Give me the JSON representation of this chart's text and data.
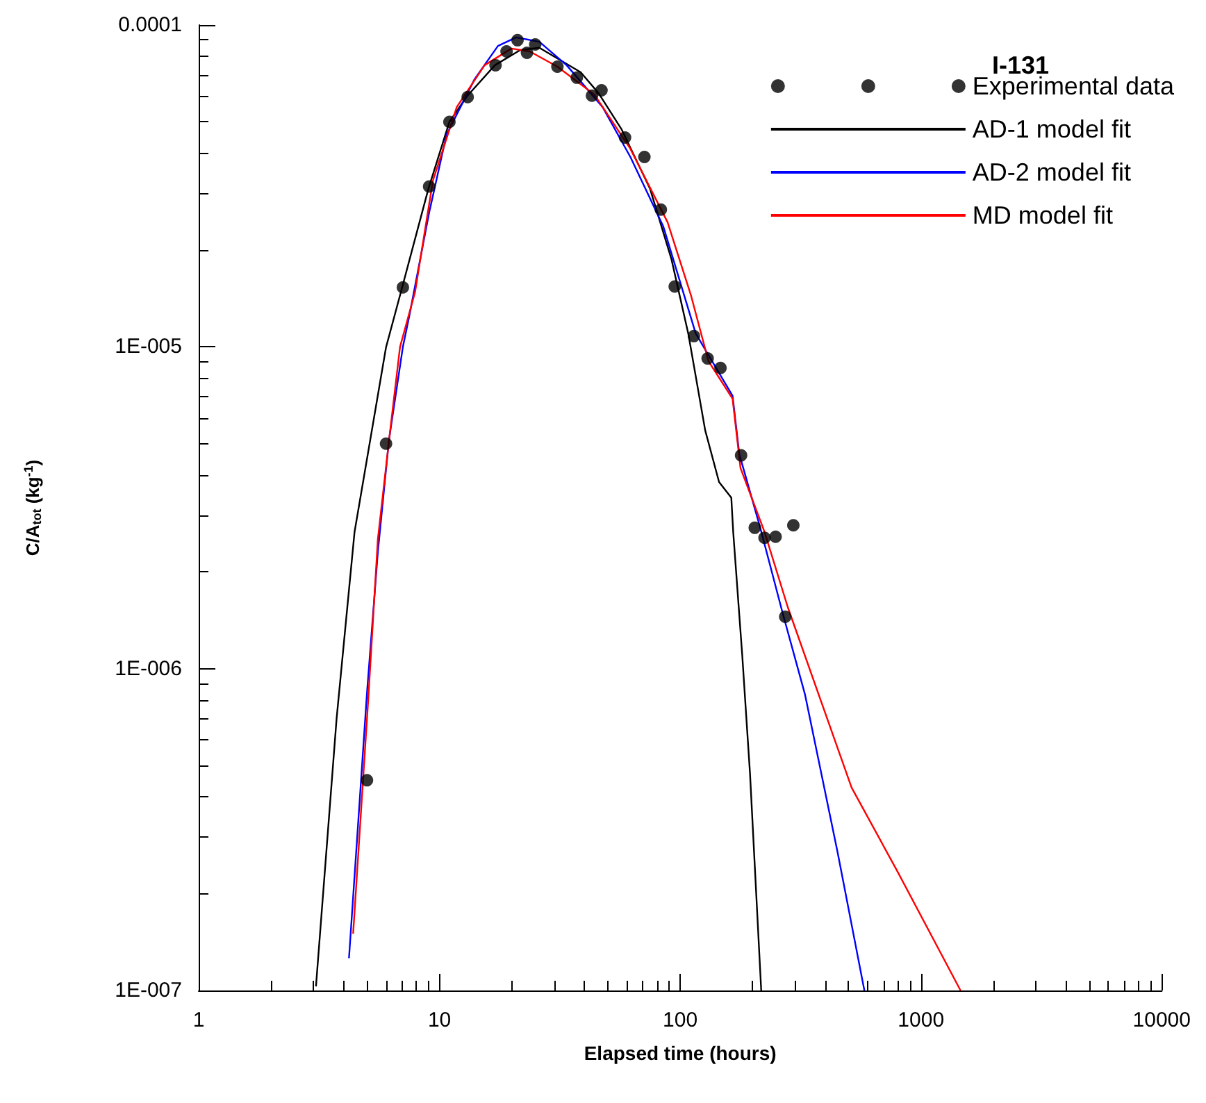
{
  "chart_data": {
    "type": "line",
    "xlabel": "Elapsed time (hours)",
    "ylabel": "C/A$_{tot}$ (kg$^{-1}$)",
    "legend_title": "I-131",
    "log": "xy",
    "grid": false,
    "legend": "top right",
    "xlim": [
      1,
      10000
    ],
    "xticks": [
      1,
      10,
      100,
      1000,
      10000
    ],
    "ylim": [
      1e-07,
      0.0001
    ],
    "yticks": [
      {
        "value": 1e-07,
        "label": "1E-007"
      },
      {
        "value": 1e-06,
        "label": "1E-006"
      },
      {
        "value": 1e-05,
        "label": "1E-005"
      },
      {
        "value": 0.0001,
        "label": "0.0001"
      }
    ],
    "series": [
      {
        "name": "Experimental data",
        "type": "scatter",
        "color": "#000000",
        "x": [
          5.0,
          6.0,
          7.05,
          9.06,
          11.0,
          13.1,
          17.1,
          19.0,
          21.1,
          23.1,
          25.0,
          30.9,
          37.2,
          43.0,
          47.1,
          59.0,
          71.0,
          83.1,
          94.9,
          114,
          130,
          147,
          179,
          204,
          224,
          249,
          273,
          295
        ],
        "values": [
          4.5e-07,
          5e-06,
          1.53e-05,
          3.15e-05,
          5e-05,
          5.97e-05,
          7.5e-05,
          8.28e-05,
          8.97e-05,
          8.2e-05,
          8.7e-05,
          7.42e-05,
          6.86e-05,
          6.03e-05,
          6.27e-05,
          4.47e-05,
          3.89e-05,
          2.67e-05,
          1.54e-05,
          1.08e-05,
          9.2e-06,
          8.6e-06,
          4.6e-06,
          2.74e-06,
          2.55e-06,
          2.57e-06,
          1.45e-06,
          2.79e-06
        ]
      },
      {
        "name": "AD-1 model fit",
        "color": "#000000",
        "x": [
          3.07,
          3.74,
          4.44,
          6.0,
          7.0,
          9.0,
          11.0,
          13.0,
          17.0,
          21.6,
          26.0,
          38.6,
          45.8,
          57,
          74.9,
          92,
          108,
          127,
          145,
          163,
          166,
          181,
          195,
          217
        ],
        "values": [
          1.03e-07,
          7e-07,
          2.66e-06,
          9.97e-06,
          1.53e-05,
          3.1e-05,
          5e-05,
          6e-05,
          7.5e-05,
          8.35e-05,
          8.5e-05,
          7.13e-05,
          6.14e-05,
          4.75e-05,
          3.1e-05,
          1.87e-05,
          1.1e-05,
          5.5e-06,
          3.8e-06,
          3.4e-06,
          2.66e-06,
          1.1e-06,
          4.7e-07,
          1e-07
        ]
      },
      {
        "name": "AD-2 model fit",
        "color": "#0000ff",
        "x": [
          4.21,
          5.0,
          5.55,
          6.17,
          7.05,
          7.5,
          9.06,
          10.7,
          14.0,
          17.5,
          20.8,
          26,
          33.8,
          47.6,
          62.1,
          85,
          116,
          165,
          176,
          215,
          265,
          330,
          450,
          582
        ],
        "values": [
          1.26e-07,
          8.4e-07,
          2.31e-06,
          5.13e-06,
          1e-05,
          1.25e-05,
          2.61e-05,
          4.56e-05,
          6.79e-05,
          8.61e-05,
          9.15e-05,
          8.87e-05,
          7.49e-05,
          5.56e-05,
          3.89e-05,
          2.37e-05,
          1.1e-05,
          7.04e-06,
          4.64e-06,
          2.74e-06,
          1.51e-06,
          8.3e-07,
          2.7e-07,
          1e-07
        ]
      },
      {
        "name": "MD model fit",
        "color": "#ff0000",
        "x": [
          4.38,
          5.06,
          5.55,
          6.17,
          6.86,
          7.92,
          9.4,
          11.8,
          15.4,
          19.9,
          23.7,
          30.9,
          44,
          62,
          88.6,
          111,
          131,
          165,
          178,
          224,
          280,
          515,
          797,
          1460
        ],
        "values": [
          1.5e-07,
          8e-07,
          2.53e-06,
          5.1e-06,
          1e-05,
          1.48e-05,
          3.29e-05,
          5.56e-05,
          7.5e-05,
          8.45e-05,
          8.28e-05,
          7.42e-05,
          6.08e-05,
          4.13e-05,
          2.44e-05,
          1.44e-05,
          9.03e-06,
          6.9e-06,
          4.2e-06,
          2.66e-06,
          1.55e-06,
          4.27e-07,
          2.35e-07,
          1e-07
        ]
      }
    ]
  }
}
